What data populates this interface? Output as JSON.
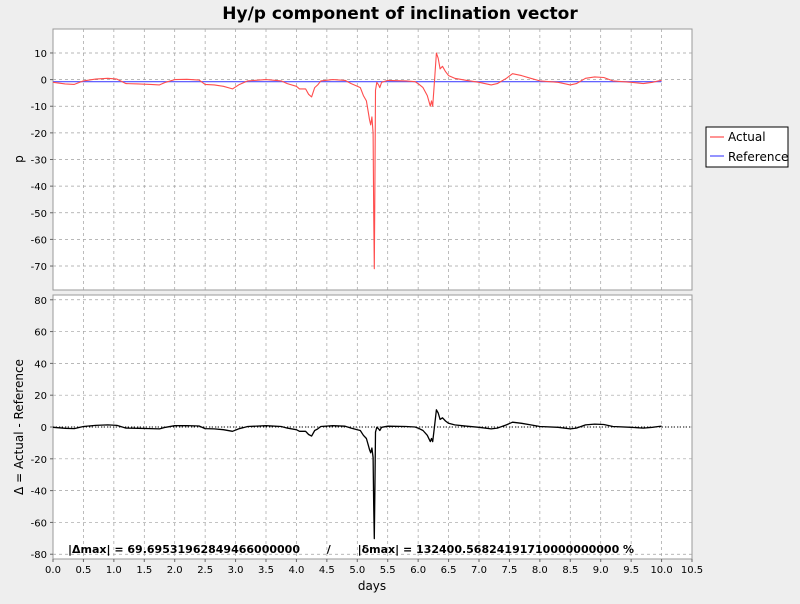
{
  "chart_data": [
    {
      "type": "line",
      "title": "Hy/p component of inclination vector",
      "xlabel": "",
      "ylabel": "p",
      "xlim": [
        0.0,
        10.5
      ],
      "ylim": [
        -79,
        19
      ],
      "yticks": [
        10,
        0,
        -10,
        -20,
        -30,
        -40,
        -50,
        -60,
        -70
      ],
      "grid": true,
      "legend_position": "right",
      "series": [
        {
          "name": "Actual",
          "color": "#ff4d4d",
          "points": [
            [
              0.0,
              -1.0
            ],
            [
              0.2,
              -1.6
            ],
            [
              0.35,
              -1.8
            ],
            [
              0.5,
              -0.5
            ],
            [
              0.7,
              0.2
            ],
            [
              0.9,
              0.5
            ],
            [
              1.05,
              0.2
            ],
            [
              1.2,
              -1.5
            ],
            [
              1.4,
              -1.6
            ],
            [
              1.6,
              -1.8
            ],
            [
              1.75,
              -2.0
            ],
            [
              1.85,
              -1.0
            ],
            [
              2.0,
              0.0
            ],
            [
              2.2,
              0.1
            ],
            [
              2.4,
              -0.2
            ],
            [
              2.5,
              -1.8
            ],
            [
              2.65,
              -2.0
            ],
            [
              2.8,
              -2.5
            ],
            [
              2.95,
              -3.5
            ],
            [
              3.05,
              -2.0
            ],
            [
              3.2,
              -0.5
            ],
            [
              3.5,
              0.0
            ],
            [
              3.75,
              -0.5
            ],
            [
              3.85,
              -1.5
            ],
            [
              4.0,
              -2.5
            ],
            [
              4.05,
              -3.5
            ],
            [
              4.15,
              -3.5
            ],
            [
              4.2,
              -5.5
            ],
            [
              4.25,
              -6.5
            ],
            [
              4.3,
              -3.0
            ],
            [
              4.35,
              -2.0
            ],
            [
              4.4,
              -0.5
            ],
            [
              4.6,
              0.0
            ],
            [
              4.8,
              -0.3
            ],
            [
              4.9,
              -1.5
            ],
            [
              5.0,
              -2.5
            ],
            [
              5.05,
              -3.0
            ],
            [
              5.1,
              -6.0
            ],
            [
              5.15,
              -8.0
            ],
            [
              5.18,
              -12.0
            ],
            [
              5.2,
              -15.0
            ],
            [
              5.22,
              -17.0
            ],
            [
              5.24,
              -14.0
            ],
            [
              5.26,
              -20.0
            ],
            [
              5.27,
              -50.0
            ],
            [
              5.28,
              -71.0
            ],
            [
              5.29,
              -40.0
            ],
            [
              5.3,
              -4.0
            ],
            [
              5.32,
              -1.0
            ],
            [
              5.35,
              -2.0
            ],
            [
              5.37,
              -3.0
            ],
            [
              5.4,
              -1.0
            ],
            [
              5.5,
              -0.3
            ],
            [
              5.8,
              -0.5
            ],
            [
              5.95,
              -0.8
            ],
            [
              6.0,
              -1.5
            ],
            [
              6.08,
              -3.0
            ],
            [
              6.15,
              -6.0
            ],
            [
              6.2,
              -10.0
            ],
            [
              6.22,
              -8.0
            ],
            [
              6.24,
              -10.0
            ],
            [
              6.27,
              0.0
            ],
            [
              6.3,
              10.0
            ],
            [
              6.33,
              8.0
            ],
            [
              6.36,
              4.0
            ],
            [
              6.4,
              5.0
            ],
            [
              6.45,
              3.0
            ],
            [
              6.5,
              1.5
            ],
            [
              6.6,
              0.5
            ],
            [
              6.8,
              -0.3
            ],
            [
              7.0,
              -1.0
            ],
            [
              7.2,
              -2.0
            ],
            [
              7.3,
              -1.5
            ],
            [
              7.45,
              0.5
            ],
            [
              7.55,
              2.2
            ],
            [
              7.7,
              1.5
            ],
            [
              7.85,
              0.5
            ],
            [
              8.0,
              -0.5
            ],
            [
              8.3,
              -1.0
            ],
            [
              8.5,
              -2.0
            ],
            [
              8.6,
              -1.5
            ],
            [
              8.75,
              0.5
            ],
            [
              8.9,
              1.0
            ],
            [
              9.05,
              0.8
            ],
            [
              9.2,
              -0.5
            ],
            [
              9.5,
              -1.0
            ],
            [
              9.7,
              -1.5
            ],
            [
              9.85,
              -1.0
            ],
            [
              9.95,
              -0.5
            ],
            [
              10.0,
              -0.3
            ]
          ]
        },
        {
          "name": "Reference",
          "color": "#4d4dff",
          "points": [
            [
              0.0,
              -0.8
            ],
            [
              10.0,
              -0.8
            ]
          ]
        }
      ]
    },
    {
      "type": "line",
      "title": "",
      "xlabel": "days",
      "ylabel": "Δ = Actual - Reference",
      "xlim": [
        0.0,
        10.5
      ],
      "ylim": [
        -83,
        83
      ],
      "xticks": [
        "0.0",
        "0.5",
        "1.0",
        "1.5",
        "2.0",
        "2.5",
        "3.0",
        "3.5",
        "4.0",
        "4.5",
        "5.0",
        "5.5",
        "6.0",
        "6.5",
        "7.0",
        "7.5",
        "8.0",
        "8.5",
        "9.0",
        "9.5",
        "10.0",
        "10.5"
      ],
      "yticks": [
        80,
        60,
        40,
        20,
        0,
        -20,
        -40,
        -60,
        -80
      ],
      "grid": true,
      "zero_line": true,
      "series": [
        {
          "name": "",
          "color": "#000000",
          "points": [
            [
              0.0,
              -0.2
            ],
            [
              0.2,
              -0.8
            ],
            [
              0.35,
              -1.0
            ],
            [
              0.5,
              0.3
            ],
            [
              0.7,
              1.0
            ],
            [
              0.9,
              1.3
            ],
            [
              1.05,
              1.0
            ],
            [
              1.2,
              -0.7
            ],
            [
              1.4,
              -0.8
            ],
            [
              1.6,
              -1.0
            ],
            [
              1.75,
              -1.2
            ],
            [
              1.85,
              -0.2
            ],
            [
              2.0,
              0.8
            ],
            [
              2.2,
              0.9
            ],
            [
              2.4,
              0.6
            ],
            [
              2.5,
              -1.0
            ],
            [
              2.65,
              -1.2
            ],
            [
              2.8,
              -1.7
            ],
            [
              2.95,
              -2.7
            ],
            [
              3.05,
              -1.2
            ],
            [
              3.2,
              0.3
            ],
            [
              3.5,
              0.8
            ],
            [
              3.75,
              0.3
            ],
            [
              3.85,
              -0.7
            ],
            [
              4.0,
              -1.7
            ],
            [
              4.05,
              -2.7
            ],
            [
              4.15,
              -2.7
            ],
            [
              4.2,
              -4.7
            ],
            [
              4.25,
              -5.7
            ],
            [
              4.3,
              -2.2
            ],
            [
              4.35,
              -1.2
            ],
            [
              4.4,
              0.3
            ],
            [
              4.6,
              0.8
            ],
            [
              4.8,
              0.5
            ],
            [
              4.9,
              -0.7
            ],
            [
              5.0,
              -1.7
            ],
            [
              5.05,
              -2.2
            ],
            [
              5.1,
              -5.2
            ],
            [
              5.15,
              -7.2
            ],
            [
              5.18,
              -11.2
            ],
            [
              5.2,
              -14.2
            ],
            [
              5.22,
              -16.2
            ],
            [
              5.24,
              -13.2
            ],
            [
              5.26,
              -19.2
            ],
            [
              5.27,
              -49.2
            ],
            [
              5.28,
              -70.2
            ],
            [
              5.29,
              -39.2
            ],
            [
              5.3,
              -3.2
            ],
            [
              5.32,
              -0.2
            ],
            [
              5.35,
              -1.2
            ],
            [
              5.37,
              -2.2
            ],
            [
              5.4,
              -0.2
            ],
            [
              5.5,
              0.5
            ],
            [
              5.8,
              0.3
            ],
            [
              5.95,
              0.0
            ],
            [
              6.0,
              -0.7
            ],
            [
              6.08,
              -2.2
            ],
            [
              6.15,
              -5.2
            ],
            [
              6.2,
              -9.2
            ],
            [
              6.22,
              -7.2
            ],
            [
              6.24,
              -9.2
            ],
            [
              6.27,
              0.8
            ],
            [
              6.3,
              10.8
            ],
            [
              6.33,
              8.8
            ],
            [
              6.36,
              4.8
            ],
            [
              6.4,
              5.8
            ],
            [
              6.45,
              3.8
            ],
            [
              6.5,
              2.3
            ],
            [
              6.6,
              1.3
            ],
            [
              6.8,
              0.5
            ],
            [
              7.0,
              -0.2
            ],
            [
              7.2,
              -1.2
            ],
            [
              7.3,
              -0.7
            ],
            [
              7.45,
              1.3
            ],
            [
              7.55,
              3.0
            ],
            [
              7.7,
              2.3
            ],
            [
              7.85,
              1.3
            ],
            [
              8.0,
              0.3
            ],
            [
              8.3,
              -0.2
            ],
            [
              8.5,
              -1.2
            ],
            [
              8.6,
              -0.7
            ],
            [
              8.75,
              1.3
            ],
            [
              8.9,
              1.8
            ],
            [
              9.05,
              1.6
            ],
            [
              9.2,
              0.3
            ],
            [
              9.5,
              -0.2
            ],
            [
              9.7,
              -0.7
            ],
            [
              9.85,
              -0.2
            ],
            [
              9.95,
              0.3
            ],
            [
              10.0,
              0.5
            ]
          ]
        }
      ],
      "annotation": "|Δmax| = 69.69531962849466000000       /       |δmax| = 132400.56824191710000000000 %"
    }
  ]
}
